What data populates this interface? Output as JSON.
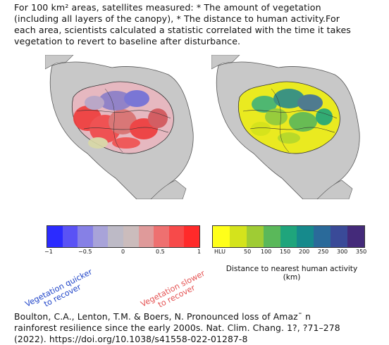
{
  "intro": {
    "line1": "For 100 km² areas, satellites measured: * The amount of vegetation",
    "line2": "(including all layers of the canopy),  * The distance to human activity.For",
    "line3": "each area, scientists calculated a statistic correlated with the time it takes",
    "line4": "vegetation to revert to baseline after disturbance."
  },
  "left_colorbar": {
    "ticks": [
      "−1",
      "−0.5",
      "0",
      "0.5",
      "1"
    ],
    "colors": [
      "#2b2bff",
      "#5a52f5",
      "#8680e6",
      "#a8a3d9",
      "#bdbac6",
      "#cbbcbc",
      "#df9a9a",
      "#ee7070",
      "#f74a4a",
      "#ff2a2a"
    ],
    "label_quicker": [
      "Vegetation quicker",
      "to recover"
    ],
    "label_slower": [
      "Vegetation slower",
      "to recover"
    ]
  },
  "right_colorbar": {
    "ticks": [
      "HLU",
      "50",
      "100",
      "150",
      "200",
      "250",
      "300",
      "350"
    ],
    "colors": [
      "#ffff1a",
      "#d4e31c",
      "#9fcc34",
      "#5ab85a",
      "#1fa57c",
      "#168a8c",
      "#2a6a9a",
      "#3a4a98",
      "#442a7a"
    ],
    "caption_line1": "Distance to nearest human activity",
    "caption_line2": "(km)"
  },
  "citation": {
    "line1": "Boulton, C.A., Lenton, T.M. & Boers, N. Pronounced loss of Amazˉ n",
    "line2": "rainforest resilience since the early 2000s. Nat. Clim. Chang. 1?, ?71–278",
    "line3": "(2022). https://doi.org/10.1038/s41558-022-01287-8"
  }
}
